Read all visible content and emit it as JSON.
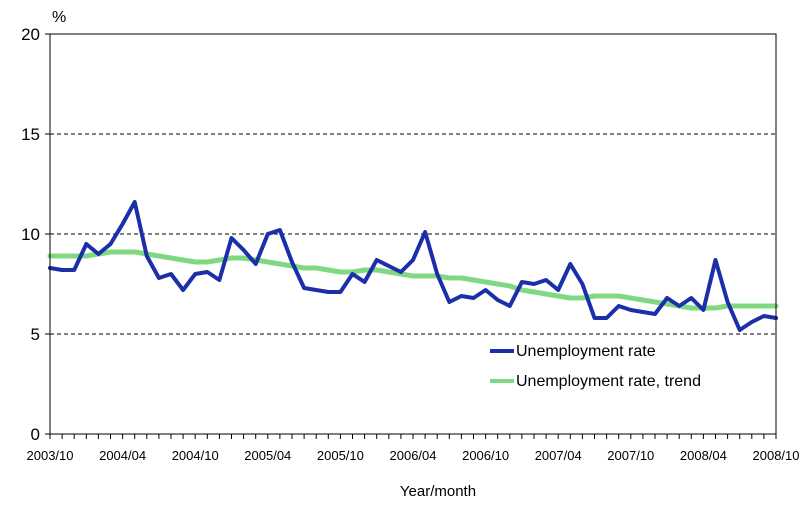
{
  "chart_data": {
    "type": "line",
    "unit_label": "%",
    "xlabel": "Year/month",
    "ylabel": "",
    "ylim": [
      0,
      20
    ],
    "yticks": [
      0,
      5,
      10,
      15,
      20
    ],
    "x_tick_labels": [
      "2003/10",
      "2004/04",
      "2004/10",
      "2005/04",
      "2005/10",
      "2006/04",
      "2006/10",
      "2007/04",
      "2007/10",
      "2008/04",
      "2008/10"
    ],
    "grid": "horizontal dashed at 5, 10, 15",
    "legend_position": "bottom-right",
    "x": [
      "2003/10",
      "2003/11",
      "2003/12",
      "2004/01",
      "2004/02",
      "2004/03",
      "2004/04",
      "2004/05",
      "2004/06",
      "2004/07",
      "2004/08",
      "2004/09",
      "2004/10",
      "2004/11",
      "2004/12",
      "2005/01",
      "2005/02",
      "2005/03",
      "2005/04",
      "2005/05",
      "2005/06",
      "2005/07",
      "2005/08",
      "2005/09",
      "2005/10",
      "2005/11",
      "2005/12",
      "2006/01",
      "2006/02",
      "2006/03",
      "2006/04",
      "2006/05",
      "2006/06",
      "2006/07",
      "2006/08",
      "2006/09",
      "2006/10",
      "2006/11",
      "2006/12",
      "2007/01",
      "2007/02",
      "2007/03",
      "2007/04",
      "2007/05",
      "2007/06",
      "2007/07",
      "2007/08",
      "2007/09",
      "2007/10",
      "2007/11",
      "2007/12",
      "2008/01",
      "2008/02",
      "2008/03",
      "2008/04",
      "2008/05",
      "2008/06",
      "2008/07",
      "2008/08",
      "2008/09",
      "2008/10"
    ],
    "series": [
      {
        "name": "Unemployment rate",
        "color": "#1a2fa8",
        "values": [
          8.3,
          8.2,
          8.2,
          9.5,
          9.0,
          9.5,
          10.5,
          11.6,
          8.9,
          7.8,
          8.0,
          7.2,
          8.0,
          8.1,
          7.7,
          9.8,
          9.2,
          8.5,
          10.0,
          10.2,
          8.6,
          7.3,
          7.2,
          7.1,
          7.1,
          8.0,
          7.6,
          8.7,
          8.4,
          8.1,
          8.7,
          10.1,
          8.0,
          6.6,
          6.9,
          6.8,
          7.2,
          6.7,
          6.4,
          7.6,
          7.5,
          7.7,
          7.2,
          8.5,
          7.5,
          5.8,
          5.8,
          6.4,
          6.2,
          6.1,
          6.0,
          6.8,
          6.4,
          6.8,
          6.2,
          8.7,
          6.6,
          5.2,
          5.6,
          5.9,
          5.8
        ]
      },
      {
        "name": "Unemployment rate, trend",
        "color": "#80d880",
        "values": [
          8.9,
          8.9,
          8.9,
          8.9,
          9.0,
          9.1,
          9.1,
          9.1,
          9.0,
          8.9,
          8.8,
          8.7,
          8.6,
          8.6,
          8.7,
          8.8,
          8.8,
          8.7,
          8.6,
          8.5,
          8.4,
          8.3,
          8.3,
          8.2,
          8.1,
          8.1,
          8.2,
          8.2,
          8.1,
          8.0,
          7.9,
          7.9,
          7.9,
          7.8,
          7.8,
          7.7,
          7.6,
          7.5,
          7.4,
          7.2,
          7.1,
          7.0,
          6.9,
          6.8,
          6.8,
          6.9,
          6.9,
          6.9,
          6.8,
          6.7,
          6.6,
          6.5,
          6.4,
          6.3,
          6.3,
          6.3,
          6.4,
          6.4,
          6.4,
          6.4,
          6.4
        ]
      }
    ]
  }
}
